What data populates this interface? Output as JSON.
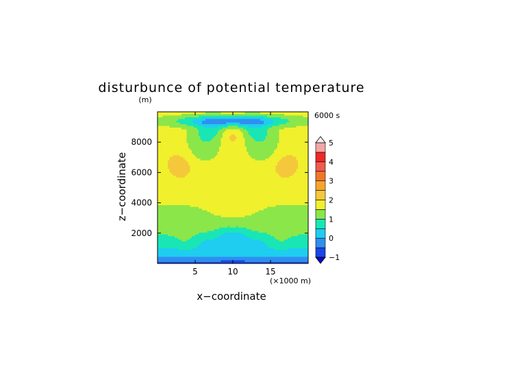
{
  "chart_data": {
    "type": "heatmap",
    "title": "disturbunce of potential temperature",
    "units_label": "(m)",
    "time_label": "6000 s",
    "xlabel": "x−coordinate",
    "ylabel": "z−coordinate",
    "x_unit_label": "(×1000 m)",
    "xlim": [
      0,
      20
    ],
    "ylim": [
      0,
      10000
    ],
    "x_ticks": [
      5,
      10,
      15
    ],
    "x_tick_labels": [
      "5",
      "10",
      "15"
    ],
    "y_ticks": [
      2000,
      4000,
      6000,
      8000
    ],
    "y_tick_labels": [
      "2000",
      "4000",
      "6000",
      "8000"
    ],
    "grid": false,
    "colorbar": {
      "position": "right",
      "min": -1,
      "max": 5,
      "extend": "both",
      "tick_values": [
        -1,
        0,
        1,
        2,
        3,
        4,
        5
      ],
      "tick_labels": [
        "−1",
        "0",
        "1",
        "2",
        "3",
        "4",
        "5"
      ],
      "bins": [
        {
          "from": -1.0,
          "to": -0.5,
          "color": "#1a46e6"
        },
        {
          "from": -0.5,
          "to": 0.0,
          "color": "#2f8ff0"
        },
        {
          "from": 0.0,
          "to": 0.5,
          "color": "#1ecdf0"
        },
        {
          "from": 0.5,
          "to": 1.0,
          "color": "#19e6b4"
        },
        {
          "from": 1.0,
          "to": 1.5,
          "color": "#8be64a"
        },
        {
          "from": 1.5,
          "to": 2.0,
          "color": "#f0f02d"
        },
        {
          "from": 2.0,
          "to": 2.5,
          "color": "#f5c83c"
        },
        {
          "from": 2.5,
          "to": 3.0,
          "color": "#f5a52d"
        },
        {
          "from": 3.0,
          "to": 3.5,
          "color": "#f07828"
        },
        {
          "from": 3.5,
          "to": 4.0,
          "color": "#f05a50"
        },
        {
          "from": 4.0,
          "to": 4.5,
          "color": "#f02828"
        },
        {
          "from": 4.5,
          "to": 5.0,
          "color": "#f5a5a5"
        }
      ],
      "over_color": "#f0f0f0",
      "under_color": "#0a0ac8"
    },
    "field_description": "approximate contour-filled field of potential temperature disturbance (K), symmetric about x = 10 km",
    "field_samples_note": "value ranges: near ground -0.5 to 0.5, 1000-3000 m about 0.5-1.5, 3000-7000 m about 1.5-2.5, lobes near x=3 and x=17 at z=6500 about 2.5, top layer near 9500 m about 0"
  }
}
